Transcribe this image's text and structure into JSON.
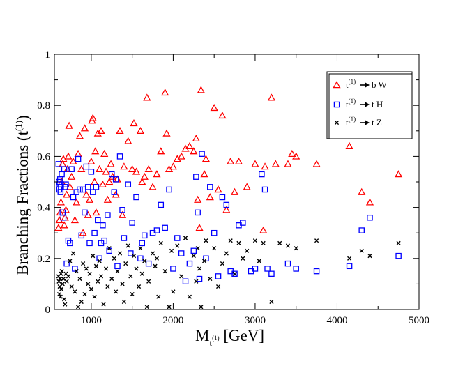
{
  "chart_data": {
    "type": "scatter",
    "xlabel": {
      "main": "M",
      "sub": "t",
      "subsup": "(1)",
      "unit": " [GeV]"
    },
    "ylabel": {
      "main": "Branching Fractions (t",
      "sup": "(1)",
      "close": ")"
    },
    "xlim": [
      550,
      5000
    ],
    "ylim": [
      0,
      1
    ],
    "xticks": [
      1000,
      2000,
      3000,
      4000,
      5000
    ],
    "yticks": [
      0,
      0.2,
      0.4,
      0.6,
      0.8,
      1
    ],
    "xtick_labels": [
      "1000",
      "2000",
      "3000",
      "4000",
      "5000"
    ],
    "ytick_labels": [
      "0",
      "0.2",
      "0.4",
      "0.6",
      "0.8",
      "1"
    ],
    "legend": [
      {
        "from": "t",
        "sup": "(1)",
        "to": "b W"
      },
      {
        "from": "t",
        "sup": "(1)",
        "to": "t H"
      },
      {
        "from": "t",
        "sup": "(1)",
        "to": "t Z"
      }
    ],
    "series": [
      {
        "name": "t(1) -> b W",
        "marker": "triangle",
        "color": "#ff0000",
        "points": [
          [
            600,
            0.32
          ],
          [
            610,
            0.35
          ],
          [
            620,
            0.38
          ],
          [
            630,
            0.42
          ],
          [
            640,
            0.5
          ],
          [
            650,
            0.57
          ],
          [
            660,
            0.59
          ],
          [
            670,
            0.33
          ],
          [
            680,
            0.36
          ],
          [
            690,
            0.39
          ],
          [
            700,
            0.45
          ],
          [
            710,
            0.55
          ],
          [
            720,
            0.6
          ],
          [
            730,
            0.72
          ],
          [
            740,
            0.48
          ],
          [
            760,
            0.52
          ],
          [
            780,
            0.58
          ],
          [
            800,
            0.35
          ],
          [
            820,
            0.42
          ],
          [
            840,
            0.61
          ],
          [
            860,
            0.68
          ],
          [
            880,
            0.55
          ],
          [
            900,
            0.3
          ],
          [
            920,
            0.71
          ],
          [
            940,
            0.45
          ],
          [
            960,
            0.37
          ],
          [
            980,
            0.43
          ],
          [
            1000,
            0.58
          ],
          [
            1010,
            0.74
          ],
          [
            1020,
            0.75
          ],
          [
            1040,
            0.5
          ],
          [
            1050,
            0.62
          ],
          [
            1060,
            0.38
          ],
          [
            1080,
            0.69
          ],
          [
            1100,
            0.55
          ],
          [
            1120,
            0.7
          ],
          [
            1140,
            0.49
          ],
          [
            1160,
            0.61
          ],
          [
            1180,
            0.54
          ],
          [
            1200,
            0.43
          ],
          [
            1220,
            0.5
          ],
          [
            1240,
            0.57
          ],
          [
            1260,
            0.52
          ],
          [
            1300,
            0.45
          ],
          [
            1320,
            0.51
          ],
          [
            1350,
            0.7
          ],
          [
            1380,
            0.37
          ],
          [
            1400,
            0.56
          ],
          [
            1450,
            0.66
          ],
          [
            1500,
            0.55
          ],
          [
            1520,
            0.73
          ],
          [
            1550,
            0.54
          ],
          [
            1600,
            0.7
          ],
          [
            1620,
            0.5
          ],
          [
            1650,
            0.52
          ],
          [
            1680,
            0.83
          ],
          [
            1700,
            0.55
          ],
          [
            1750,
            0.48
          ],
          [
            1800,
            0.53
          ],
          [
            1850,
            0.62
          ],
          [
            1900,
            0.85
          ],
          [
            1920,
            0.69
          ],
          [
            1950,
            0.55
          ],
          [
            2000,
            0.56
          ],
          [
            2050,
            0.59
          ],
          [
            2100,
            0.6
          ],
          [
            2150,
            0.63
          ],
          [
            2200,
            0.64
          ],
          [
            2250,
            0.62
          ],
          [
            2280,
            0.67
          ],
          [
            2300,
            0.43
          ],
          [
            2320,
            0.32
          ],
          [
            2340,
            0.86
          ],
          [
            2380,
            0.53
          ],
          [
            2400,
            0.59
          ],
          [
            2450,
            0.44
          ],
          [
            2500,
            0.79
          ],
          [
            2550,
            0.47
          ],
          [
            2600,
            0.76
          ],
          [
            2650,
            0.39
          ],
          [
            2700,
            0.58
          ],
          [
            2750,
            0.46
          ],
          [
            2800,
            0.58
          ],
          [
            2900,
            0.48
          ],
          [
            3000,
            0.57
          ],
          [
            3100,
            0.31
          ],
          [
            3120,
            0.56
          ],
          [
            3200,
            0.83
          ],
          [
            3250,
            0.57
          ],
          [
            3400,
            0.57
          ],
          [
            3450,
            0.61
          ],
          [
            3500,
            0.6
          ],
          [
            3750,
            0.57
          ],
          [
            4150,
            0.64
          ],
          [
            4300,
            0.46
          ],
          [
            4400,
            0.42
          ],
          [
            4750,
            0.53
          ]
        ]
      },
      {
        "name": "t(1) -> t H",
        "marker": "square",
        "color": "#0000ff",
        "points": [
          [
            600,
            0.57
          ],
          [
            605,
            0.5
          ],
          [
            610,
            0.47
          ],
          [
            615,
            0.49
          ],
          [
            620,
            0.51
          ],
          [
            625,
            0.46
          ],
          [
            630,
            0.48
          ],
          [
            640,
            0.53
          ],
          [
            650,
            0.38
          ],
          [
            660,
            0.36
          ],
          [
            670,
            0.55
          ],
          [
            680,
            0.48
          ],
          [
            690,
            0.49
          ],
          [
            700,
            0.18
          ],
          [
            720,
            0.27
          ],
          [
            740,
            0.26
          ],
          [
            760,
            0.55
          ],
          [
            780,
            0.44
          ],
          [
            800,
            0.16
          ],
          [
            820,
            0.46
          ],
          [
            840,
            0.59
          ],
          [
            860,
            0.47
          ],
          [
            880,
            0.29
          ],
          [
            900,
            0.47
          ],
          [
            920,
            0.38
          ],
          [
            940,
            0.56
          ],
          [
            960,
            0.48
          ],
          [
            980,
            0.26
          ],
          [
            1000,
            0.54
          ],
          [
            1020,
            0.46
          ],
          [
            1040,
            0.3
          ],
          [
            1060,
            0.48
          ],
          [
            1080,
            0.35
          ],
          [
            1100,
            0.2
          ],
          [
            1120,
            0.26
          ],
          [
            1140,
            0.33
          ],
          [
            1160,
            0.27
          ],
          [
            1200,
            0.37
          ],
          [
            1220,
            0.23
          ],
          [
            1250,
            0.53
          ],
          [
            1280,
            0.46
          ],
          [
            1300,
            0.51
          ],
          [
            1320,
            0.17
          ],
          [
            1350,
            0.6
          ],
          [
            1380,
            0.39
          ],
          [
            1400,
            0.28
          ],
          [
            1450,
            0.49
          ],
          [
            1480,
            0.22
          ],
          [
            1500,
            0.34
          ],
          [
            1550,
            0.44
          ],
          [
            1600,
            0.2
          ],
          [
            1620,
            0.26
          ],
          [
            1650,
            0.29
          ],
          [
            1700,
            0.18
          ],
          [
            1750,
            0.3
          ],
          [
            1800,
            0.31
          ],
          [
            1850,
            0.41
          ],
          [
            1900,
            0.32
          ],
          [
            1950,
            0.47
          ],
          [
            2000,
            0.16
          ],
          [
            2050,
            0.28
          ],
          [
            2100,
            0.22
          ],
          [
            2150,
            0.11
          ],
          [
            2200,
            0.18
          ],
          [
            2250,
            0.23
          ],
          [
            2280,
            0.52
          ],
          [
            2300,
            0.38
          ],
          [
            2320,
            0.12
          ],
          [
            2350,
            0.61
          ],
          [
            2400,
            0.2
          ],
          [
            2450,
            0.48
          ],
          [
            2500,
            0.3
          ],
          [
            2550,
            0.13
          ],
          [
            2600,
            0.44
          ],
          [
            2650,
            0.41
          ],
          [
            2700,
            0.15
          ],
          [
            2750,
            0.14
          ],
          [
            2800,
            0.33
          ],
          [
            2850,
            0.34
          ],
          [
            2950,
            0.15
          ],
          [
            3000,
            0.16
          ],
          [
            3080,
            0.53
          ],
          [
            3120,
            0.47
          ],
          [
            3150,
            0.16
          ],
          [
            3200,
            0.14
          ],
          [
            3400,
            0.18
          ],
          [
            3500,
            0.16
          ],
          [
            3750,
            0.15
          ],
          [
            4150,
            0.17
          ],
          [
            4300,
            0.31
          ],
          [
            4400,
            0.36
          ],
          [
            4750,
            0.21
          ]
        ]
      },
      {
        "name": "t(1) -> t Z",
        "marker": "cross",
        "color": "#000000",
        "points": [
          [
            600,
            0.13
          ],
          [
            605,
            0.11
          ],
          [
            610,
            0.06
          ],
          [
            615,
            0.09
          ],
          [
            620,
            0.12
          ],
          [
            625,
            0.05
          ],
          [
            630,
            0.14
          ],
          [
            635,
            0.08
          ],
          [
            640,
            0.15
          ],
          [
            650,
            0.1
          ],
          [
            660,
            0.12
          ],
          [
            670,
            0.04
          ],
          [
            680,
            0.02
          ],
          [
            690,
            0.14
          ],
          [
            700,
            0.11
          ],
          [
            720,
            0.13
          ],
          [
            740,
            0.19
          ],
          [
            760,
            0.09
          ],
          [
            780,
            0.22
          ],
          [
            800,
            0.07
          ],
          [
            820,
            0.15
          ],
          [
            840,
            0.01
          ],
          [
            860,
            0.12
          ],
          [
            880,
            0.03
          ],
          [
            900,
            0.18
          ],
          [
            920,
            0.06
          ],
          [
            940,
            0.16
          ],
          [
            960,
            0.1
          ],
          [
            980,
            0.14
          ],
          [
            1000,
            0.08
          ],
          [
            1020,
            0.21
          ],
          [
            1040,
            0.05
          ],
          [
            1060,
            0.17
          ],
          [
            1080,
            0.11
          ],
          [
            1100,
            0.19
          ],
          [
            1120,
            0.13
          ],
          [
            1150,
            0.02
          ],
          [
            1180,
            0.16
          ],
          [
            1200,
            0.09
          ],
          [
            1220,
            0.24
          ],
          [
            1250,
            0.12
          ],
          [
            1280,
            0.2
          ],
          [
            1300,
            0.07
          ],
          [
            1320,
            0.15
          ],
          [
            1350,
            0.22
          ],
          [
            1380,
            0.1
          ],
          [
            1400,
            0.03
          ],
          [
            1420,
            0.18
          ],
          [
            1450,
            0.25
          ],
          [
            1480,
            0.13
          ],
          [
            1500,
            0.06
          ],
          [
            1520,
            0.21
          ],
          [
            1550,
            0.16
          ],
          [
            1580,
            0.09
          ],
          [
            1600,
            0.24
          ],
          [
            1620,
            0.14
          ],
          [
            1650,
            0.19
          ],
          [
            1680,
            0.01
          ],
          [
            1700,
            0.11
          ],
          [
            1750,
            0.22
          ],
          [
            1780,
            0.17
          ],
          [
            1800,
            0.2
          ],
          [
            1820,
            0.05
          ],
          [
            1850,
            0.26
          ],
          [
            1900,
            0.15
          ],
          [
            1950,
            0.01
          ],
          [
            1980,
            0.23
          ],
          [
            2000,
            0.07
          ],
          [
            2050,
            0.25
          ],
          [
            2100,
            0.13
          ],
          [
            2150,
            0.28
          ],
          [
            2200,
            0.05
          ],
          [
            2250,
            0.21
          ],
          [
            2280,
            0.11
          ],
          [
            2300,
            0.24
          ],
          [
            2320,
            0.16
          ],
          [
            2340,
            0.01
          ],
          [
            2380,
            0.19
          ],
          [
            2400,
            0.27
          ],
          [
            2450,
            0.12
          ],
          [
            2500,
            0.24
          ],
          [
            2550,
            0.09
          ],
          [
            2600,
            0.18
          ],
          [
            2650,
            0.22
          ],
          [
            2700,
            0.27
          ],
          [
            2750,
            0.14
          ],
          [
            2800,
            0.26
          ],
          [
            2850,
            0.2
          ],
          [
            2900,
            0.23
          ],
          [
            3000,
            0.27
          ],
          [
            3050,
            0.19
          ],
          [
            3100,
            0.26
          ],
          [
            3200,
            0.03
          ],
          [
            3300,
            0.26
          ],
          [
            3400,
            0.25
          ],
          [
            3500,
            0.24
          ],
          [
            3750,
            0.27
          ],
          [
            4150,
            0.2
          ],
          [
            4300,
            0.23
          ],
          [
            4400,
            0.21
          ],
          [
            4750,
            0.26
          ]
        ]
      }
    ]
  }
}
